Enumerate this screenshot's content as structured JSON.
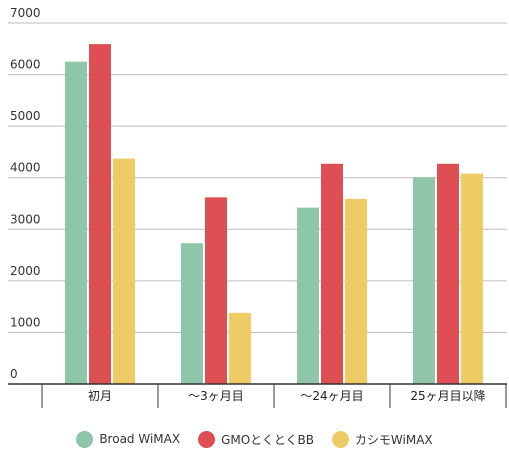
{
  "chart_data": {
    "type": "bar",
    "categories": [
      "初月",
      "～3ヶ月目",
      "～24ヶ月目",
      "25ヶ月目以降"
    ],
    "series": [
      {
        "name": "Broad WiMAX",
        "color": "#8fc5a8",
        "values": [
          6250,
          2730,
          3420,
          4010
        ]
      },
      {
        "name": "GMOとくとくBB",
        "color": "#dd4f52",
        "values": [
          6590,
          3620,
          4270,
          4270
        ]
      },
      {
        "name": "カシモWiMAX",
        "color": "#eecb65",
        "values": [
          4370,
          1380,
          3590,
          4080
        ]
      }
    ],
    "ylim": [
      0,
      7000
    ],
    "yticks": [
      0,
      1000,
      2000,
      3000,
      4000,
      5000,
      6000,
      7000
    ],
    "grid": true,
    "legend_position": "bottom"
  }
}
